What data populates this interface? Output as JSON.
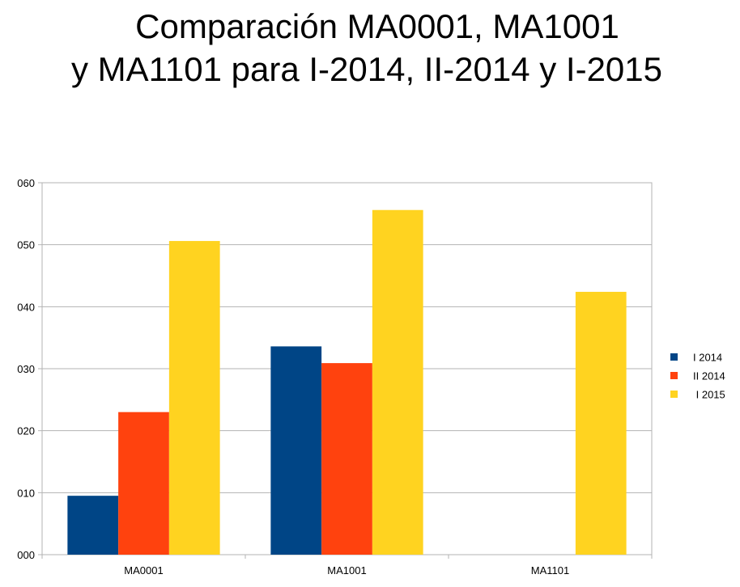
{
  "chart_data": {
    "type": "bar",
    "title_lines": [
      "Comparación MA0001, MA1001",
      "y MA1101 para I-2014, II-2014 y I-2015"
    ],
    "categories": [
      "MA0001",
      "MA1001",
      "MA1101"
    ],
    "series": [
      {
        "name": "I 2014",
        "color": "#004586",
        "values": [
          9.5,
          33.6,
          null
        ]
      },
      {
        "name": "II 2014",
        "color": "#ff420e",
        "values": [
          23.0,
          30.9,
          null
        ]
      },
      {
        "name": " I 2015",
        "color": "#ffd320",
        "values": [
          50.6,
          55.6,
          42.4
        ]
      }
    ],
    "ylim": [
      0,
      60
    ],
    "yticks": [
      0,
      10,
      20,
      30,
      40,
      50,
      60
    ],
    "ytick_labels": [
      "000",
      "010",
      "020",
      "030",
      "040",
      "050",
      "060"
    ],
    "xlabel": "",
    "ylabel": "",
    "grid": true,
    "legend_position": "right"
  }
}
